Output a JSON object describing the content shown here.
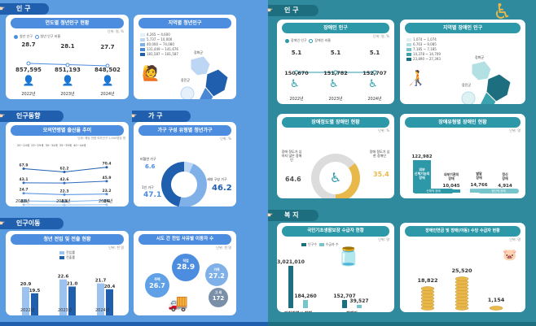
{
  "sections": {
    "population": "인 구",
    "pop_trend": "인구동향",
    "household": "가 구",
    "migration": "인구이동",
    "disabled_pop": "인 구",
    "welfare": "복 지"
  },
  "cards": {
    "youth_pop": {
      "title": "연도별 청년인구 현황",
      "unit": "단위: 명, %",
      "legend": [
        "청년 인구",
        "청년 인구 비율"
      ]
    },
    "region_youth": {
      "title": "지역별 청년인구",
      "legend": [
        "4,265 ~ 4,600",
        "5,737 ~ 10,000",
        "40,000 ~ 74,080",
        "131,449 ~ 141,676",
        "181,587 ~ 181,587"
      ],
      "labels": [
        "강화군",
        "옹진군"
      ]
    },
    "birth": {
      "title": "모의연령별 출산율 추이",
      "unit": "단위: 해당 연령 여자인구 1,000명당 명",
      "legend": [
        "20~24세",
        "25~29세",
        "30~34세",
        "35~39세",
        "40~44세"
      ]
    },
    "household_type": {
      "title": "가구 구성 유형별 청년가구",
      "unit": "단위: %",
      "labels": [
        "비혈연 가구",
        "1인 가구",
        "세대 구성 가구"
      ]
    },
    "migration": {
      "title": "청년 전입 및 전출 현황",
      "unit": "단위: 천 명",
      "legend": [
        "전입률",
        "전출률"
      ]
    },
    "move_reason": {
      "title": "시도 간 전입 사유별 이동자 수",
      "unit": "단위: 천 명",
      "labels": [
        "직업",
        "주택",
        "가족",
        "그 외"
      ],
      "values": [
        "28.9",
        "26.7",
        "27.2",
        "172"
      ]
    },
    "disabled": {
      "title": "장애인 인구",
      "unit": "단위: 명, %",
      "legend": [
        "장애인 인구",
        "장애인 비율"
      ]
    },
    "region_disabled": {
      "title": "지역별 장애인 인구",
      "legend": [
        "1,074 ~ 1,074",
        "6,703 ~ 9,085",
        "7,185 ~ 7,185",
        "14,378 ~ 14,709",
        "23,890 ~ 27,393"
      ],
      "labels": [
        "강화군",
        "옹진군"
      ]
    },
    "severity": {
      "title": "장애정도별 장애인 현황",
      "unit": "단위: %",
      "labels": [
        "장애 정도가 심하지 않은 장애인",
        "장애 정도가 심한 장애인"
      ]
    },
    "dis_type": {
      "title": "장애유형별 장애인 현황",
      "unit": "단위: 명",
      "legend": [
        "신체적 장애",
        "정신적 장애"
      ]
    },
    "basic_living": {
      "title": "국민기초생활보장 수급자 현황",
      "unit": "단위: 명",
      "legend": [
        "인구수",
        "수급자 수"
      ]
    },
    "pension": {
      "title": "장애인연금 및 장애(아동) 수당 수급자 현황",
      "unit": "단위: 명"
    }
  },
  "chart_data": [
    {
      "type": "bar",
      "title": "연도별 청년인구 현황",
      "categories": [
        "2022년",
        "2023년",
        "2024년"
      ],
      "series": [
        {
          "name": "청년 인구",
          "values": [
            857595,
            851193,
            848502
          ]
        },
        {
          "name": "청년 인구 비율",
          "values": [
            28.7,
            28.1,
            27.7
          ]
        }
      ]
    },
    {
      "type": "line",
      "title": "모의연령별 출산율 추이",
      "categories": [
        "2022년",
        "2023년",
        "2024년"
      ],
      "series": [
        {
          "name": "20~24세",
          "values": [
            4.5,
            4.1,
            4.6
          ]
        },
        {
          "name": "25~29세",
          "values": [
            24.7,
            22.3,
            23.2
          ]
        },
        {
          "name": "30~34세",
          "values": [
            67.9,
            62.2,
            70.4
          ]
        },
        {
          "name": "35~39세",
          "values": [
            43.1,
            42.6,
            45.9
          ]
        },
        {
          "name": "40~44세",
          "values": [
            11.3,
            10.1,
            12.5
          ]
        }
      ]
    },
    {
      "type": "pie",
      "title": "가구 구성 유형별 청년가구",
      "categories": [
        "비혈연 가구",
        "1인 가구",
        "세대 구성 가구"
      ],
      "values": [
        6.6,
        47.1,
        46.2
      ]
    },
    {
      "type": "bar",
      "title": "청년 전입 및 전출 현황",
      "categories": [
        "2022년",
        "2023년",
        "2024년"
      ],
      "series": [
        {
          "name": "전입률",
          "values": [
            20.9,
            22.6,
            21.7
          ]
        },
        {
          "name": "전출률",
          "values": [
            19.5,
            21.0,
            20.4
          ]
        }
      ]
    },
    {
      "type": "bar",
      "title": "장애인 인구",
      "categories": [
        "2022년",
        "2023년",
        "2024년"
      ],
      "series": [
        {
          "name": "장애인 인구",
          "values": [
            150670,
            151782,
            152707
          ]
        },
        {
          "name": "장애인 비율",
          "values": [
            5.1,
            5.1,
            5.1
          ]
        }
      ]
    },
    {
      "type": "pie",
      "title": "장애정도별 장애인 현황",
      "categories": [
        "장애 정도가 심하지 않은 장애인",
        "장애 정도가 심한 장애인"
      ],
      "values": [
        64.6,
        35.4
      ]
    },
    {
      "type": "bar",
      "title": "장애유형별 장애인 현황",
      "categories": [
        "외부 신체기능의 장애",
        "내부기관의 장애",
        "발달 장애",
        "정신 장애"
      ],
      "values": [
        122982,
        10045,
        14766,
        4914
      ]
    },
    {
      "type": "bar",
      "title": "국민기초생활보장 수급자 현황",
      "categories": [
        "인천광역시 전체",
        "장애인"
      ],
      "series": [
        {
          "name": "인구수",
          "values": [
            3021010,
            152707
          ]
        },
        {
          "name": "수급자 수",
          "values": [
            184260,
            39527
          ]
        }
      ]
    },
    {
      "type": "bar",
      "title": "장애인연금 및 장애(아동) 수당 수급자 현황",
      "categories": [
        "장애인연금",
        "장애수당",
        "장애아동수당"
      ],
      "values": [
        18822,
        25520,
        1154
      ]
    }
  ],
  "text": {
    "youth_rates": [
      "28.7",
      "28.1",
      "27.7"
    ],
    "youth_counts": [
      "857,595",
      "851,193",
      "848,502"
    ],
    "years": [
      "2022년",
      "2023년",
      "2024년"
    ],
    "hh_values": [
      "6.6",
      "47.1",
      "46.2"
    ],
    "mig_in": [
      "20.9",
      "22.6",
      "21.7"
    ],
    "mig_out": [
      "19.5",
      "21.0",
      "20.4"
    ],
    "dis_rates": [
      "5.1",
      "5.1",
      "5.1"
    ],
    "dis_counts": [
      "150,670",
      "151,782",
      "152,707"
    ],
    "sev_values": [
      "64.6",
      "35.4"
    ],
    "type_values": [
      "122,982",
      "10,045",
      "14,766",
      "4,914"
    ],
    "type_labels": [
      "외부 신체기능의 장애",
      "내부기관의 장애",
      "발달 장애",
      "정신 장애"
    ],
    "bl_values": [
      "3,021,010",
      "184,260",
      "152,707",
      "39,527"
    ],
    "bl_labels": [
      "인천광역시 전체",
      "장애인"
    ],
    "pen_values": [
      "18,822",
      "25,520",
      "1,154"
    ],
    "pen_labels": [
      "장애인연금",
      "장애수당",
      "장애아동수당"
    ],
    "birth_left": [
      "67.9",
      "43.1",
      "24.7",
      "4.5"
    ],
    "birth_mid": [
      "62.2",
      "42.6",
      "22.3",
      "4.1"
    ],
    "birth_right": [
      "70.4",
      "45.9",
      "23.2",
      "4.6"
    ]
  },
  "colors": {
    "blue": "#4d8de0",
    "navy": "#1f5fae",
    "teal": "#2c98a8",
    "gold": "#e8b84a"
  }
}
